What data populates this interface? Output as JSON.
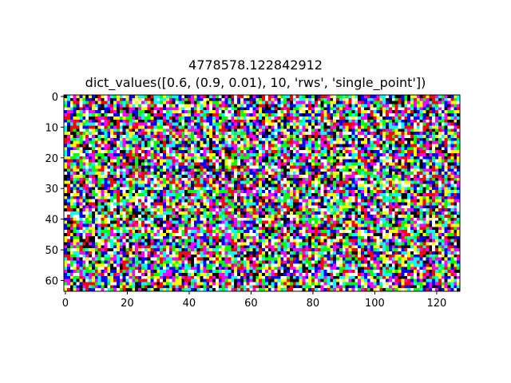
{
  "chart_data": {
    "type": "heatmap",
    "title_lines": [
      "4778578.122842912",
      "dict_values([0.6, (0.9, 0.01), 10, 'rws', 'single_point'])"
    ],
    "xlabel": "",
    "ylabel": "",
    "grid": false,
    "image": {
      "columns": 128,
      "rows": 64,
      "encoding": "random binary RGB pixels (each channel on/off)",
      "palette": [
        "#000000",
        "#ff0000",
        "#00ff00",
        "#0000ff",
        "#ffff00",
        "#ff00ff",
        "#00ffff",
        "#ffffff"
      ]
    },
    "xlim": [
      -0.5,
      127.5
    ],
    "ylim": [
      63.5,
      -0.5
    ],
    "x_ticks": [
      0,
      20,
      40,
      60,
      80,
      100,
      120
    ],
    "x_tick_labels": [
      "0",
      "20",
      "40",
      "60",
      "80",
      "100",
      "120"
    ],
    "y_ticks": [
      0,
      10,
      20,
      30,
      40,
      50,
      60
    ],
    "y_tick_labels": [
      "0",
      "10",
      "20",
      "30",
      "40",
      "50",
      "60"
    ]
  }
}
